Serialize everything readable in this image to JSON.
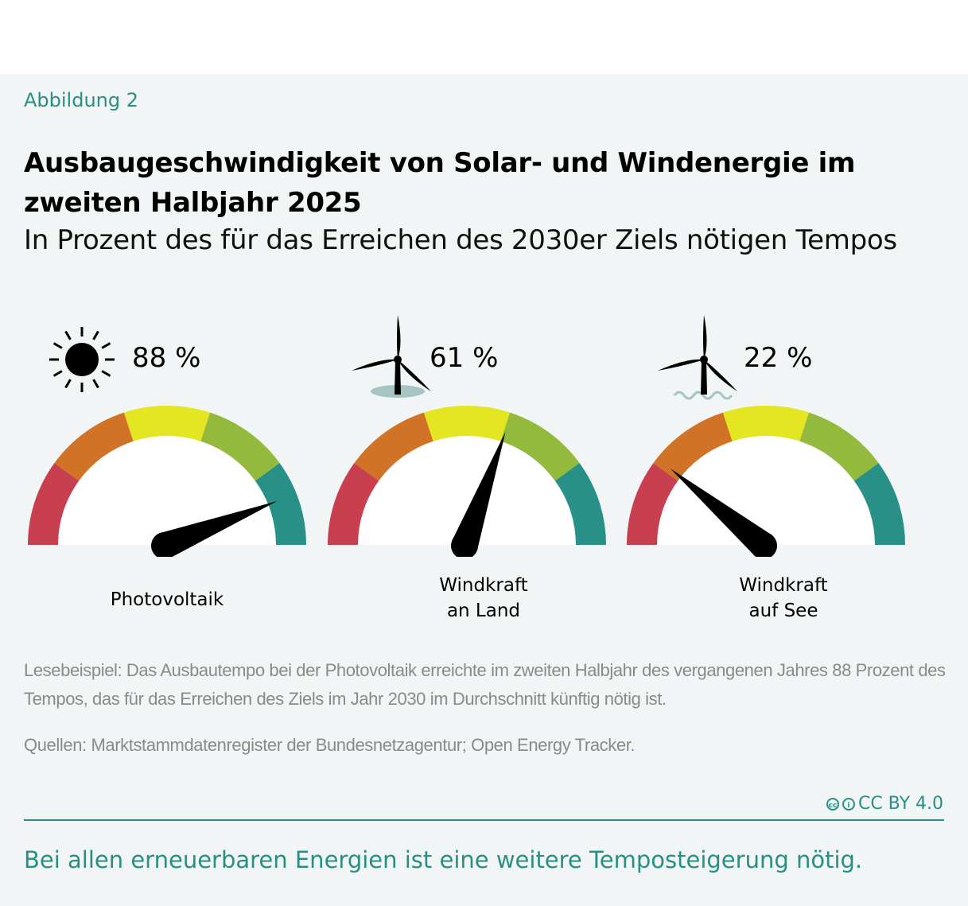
{
  "figure_label": "Abbildung 2",
  "title": "Ausbaugeschwindigkeit von Solar- und Windenergie im zweiten Halbjahr 2025",
  "subtitle": "In Prozent des für das Erreichen des 2030er Ziels nötigen Tempos",
  "chart_data": {
    "type": "gauge",
    "range": [
      0,
      100
    ],
    "zone_colors": [
      "#c83f4f",
      "#d07327",
      "#e5e622",
      "#93ba3c",
      "#289087"
    ],
    "gauges": [
      {
        "label_lines": [
          "Photovoltaik"
        ],
        "value": 88,
        "value_label": "88 %",
        "icon": "sun-icon"
      },
      {
        "label_lines": [
          "Windkraft",
          "an Land"
        ],
        "value": 61,
        "value_label": "61 %",
        "icon": "onshore-wind-turbine-icon"
      },
      {
        "label_lines": [
          "Windkraft",
          "auf See"
        ],
        "value": 22,
        "value_label": "22 %",
        "icon": "offshore-wind-turbine-icon"
      }
    ]
  },
  "reading_example": "Lesebeispiel: Das Ausbautempo bei der Photovoltaik erreichte im zweiten Halbjahr des vergangenen Jahres 88 Prozent des Tempos, das für das Erreichen des Ziels im Jahr 2030 im Durchschnitt künftig nötig ist.",
  "sources": "Quellen: Marktstammdatenregister der Bundesnetzagentur; Open Energy Tracker.",
  "license": "CC BY 4.0",
  "takeaway": "Bei allen erneuerbaren Energien ist eine weitere Temposteigerung nötig.",
  "colors": {
    "accent": "#2a8f83",
    "background": "#f1f5f6"
  }
}
